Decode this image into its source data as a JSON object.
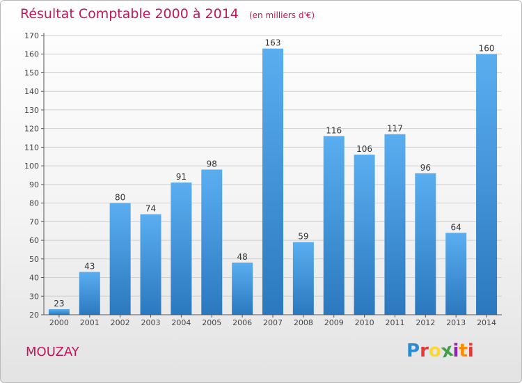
{
  "header": {
    "title": "Résultat Comptable 2000 à 2014",
    "subtitle": "(en milliers d'€)"
  },
  "footer": {
    "commune": "MOUZAY",
    "logo_letters": [
      "P",
      "r",
      "o",
      "x",
      "i",
      "t",
      "i"
    ],
    "logo_colors": [
      "#2a8bd4",
      "#e53935",
      "#fdd835",
      "#43a047",
      "#8e24aa",
      "#fb8c00",
      "#e53935"
    ]
  },
  "colors": {
    "bar": "#3b8fd8",
    "accent": "#c2185b"
  },
  "chart_data": {
    "type": "bar",
    "title": "Résultat Comptable 2000 à 2014",
    "subtitle": "(en milliers d'€)",
    "categories": [
      "2000",
      "2001",
      "2002",
      "2003",
      "2004",
      "2005",
      "2006",
      "2007",
      "2008",
      "2009",
      "2010",
      "2011",
      "2012",
      "2013",
      "2014"
    ],
    "values": [
      23,
      43,
      80,
      74,
      91,
      98,
      48,
      163,
      59,
      116,
      106,
      117,
      96,
      64,
      160
    ],
    "ylim": [
      20,
      170
    ],
    "yticks": [
      20,
      30,
      40,
      50,
      60,
      70,
      80,
      90,
      100,
      110,
      120,
      130,
      140,
      150,
      160,
      170
    ],
    "grid": true,
    "xlabel": "",
    "ylabel": ""
  }
}
